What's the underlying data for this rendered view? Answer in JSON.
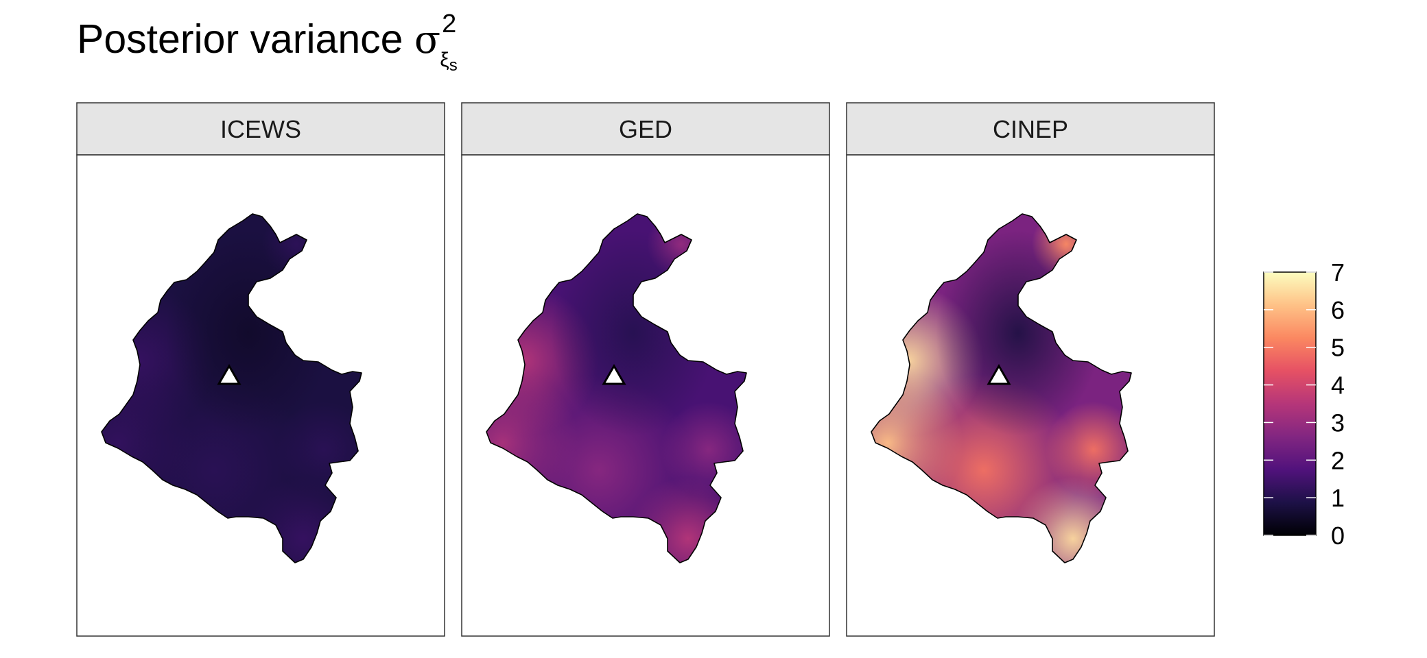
{
  "title": {
    "text": "Posterior variance",
    "symbol": "σ",
    "superscript": "2",
    "subscript": "ξ",
    "subsubscript": "s"
  },
  "chart_data": {
    "type": "heatmap",
    "panels": [
      {
        "label": "ICEWS",
        "mean_level": 0.8,
        "level_range": [
          0.5,
          1.3
        ]
      },
      {
        "label": "GED",
        "mean_level": 1.6,
        "level_range": [
          1.0,
          3.5
        ]
      },
      {
        "label": "CINEP",
        "mean_level": 2.5,
        "level_range": [
          0.8,
          6.5
        ]
      }
    ],
    "marker": {
      "shape": "triangle",
      "description_color": "#ffffff"
    },
    "colorbar": {
      "min": 0,
      "max": 7,
      "ticks": [
        "0",
        "1",
        "2",
        "3",
        "4",
        "5",
        "6",
        "7"
      ],
      "palette": "magma",
      "stops": [
        "#000004",
        "#1d1147",
        "#51127c",
        "#822681",
        "#b63679",
        "#e65164",
        "#fb8861",
        "#fec287",
        "#fcfdbf"
      ]
    },
    "grid": false
  }
}
